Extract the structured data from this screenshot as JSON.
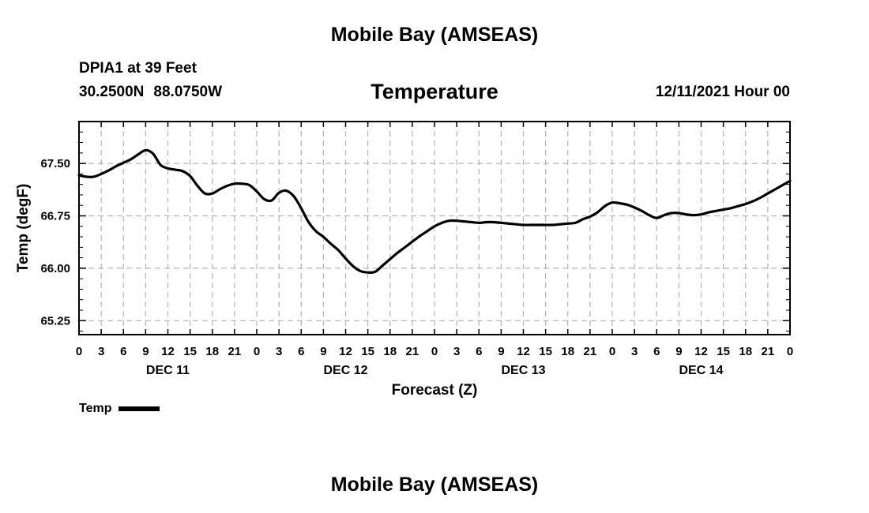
{
  "header": {
    "title": "Mobile Bay (AMSEAS)",
    "station": "DPIA1 at 39 Feet",
    "lat": "30.2500N",
    "lon": "88.0750W",
    "chart_title": "Temperature",
    "init_time": "12/11/2021 Hour 00"
  },
  "footer": {
    "title": "Mobile Bay (AMSEAS)"
  },
  "legend": {
    "label": "Temp",
    "color": "#000000"
  },
  "chart_data": {
    "type": "line",
    "title": "Temperature",
    "xlabel": "Forecast (Z)",
    "ylabel": "Temp (degF)",
    "x_unit": "forecast hour",
    "xlim": [
      0,
      96
    ],
    "ylim": [
      65.05,
      68.1
    ],
    "yticks": [
      65.25,
      66.0,
      66.75,
      67.5
    ],
    "ytick_labels": [
      "65.25",
      "66.00",
      "66.75",
      "67.50"
    ],
    "xtick_labels": [
      "0",
      "3",
      "6",
      "9",
      "12",
      "15",
      "18",
      "21",
      "0",
      "3",
      "6",
      "9",
      "12",
      "15",
      "18",
      "21",
      "0",
      "3",
      "6",
      "9",
      "12",
      "15",
      "18",
      "21",
      "0",
      "3",
      "6",
      "9",
      "12",
      "15",
      "18",
      "21",
      "0"
    ],
    "date_labels": [
      {
        "label": "DEC 11",
        "hour": 12
      },
      {
        "label": "DEC 12",
        "hour": 36
      },
      {
        "label": "DEC 13",
        "hour": 60
      },
      {
        "label": "DEC 14",
        "hour": 84
      }
    ],
    "grid": true,
    "legend_position": "bottom-left",
    "series": [
      {
        "name": "Temp",
        "color": "#000000",
        "x": [
          0,
          1,
          2,
          3,
          4,
          5,
          6,
          7,
          8,
          9,
          10,
          11,
          12,
          13,
          14,
          15,
          16,
          17,
          18,
          19,
          20,
          21,
          22,
          23,
          24,
          25,
          26,
          27,
          28,
          29,
          30,
          31,
          32,
          33,
          34,
          35,
          36,
          37,
          38,
          39,
          40,
          41,
          42,
          43,
          44,
          45,
          46,
          47,
          48,
          49,
          50,
          51,
          52,
          53,
          54,
          55,
          56,
          57,
          58,
          59,
          60,
          61,
          62,
          63,
          64,
          65,
          66,
          67,
          68,
          69,
          70,
          71,
          72,
          73,
          74,
          75,
          76,
          77,
          78,
          79,
          80,
          81,
          82,
          83,
          84,
          85,
          86,
          87,
          88,
          89,
          90,
          91,
          92,
          93,
          94,
          95,
          96
        ],
        "y": [
          67.33,
          67.31,
          67.31,
          67.35,
          67.4,
          67.46,
          67.51,
          67.56,
          67.63,
          67.69,
          67.64,
          67.48,
          67.43,
          67.41,
          67.39,
          67.32,
          67.18,
          67.07,
          67.07,
          67.13,
          67.18,
          67.21,
          67.21,
          67.19,
          67.1,
          66.99,
          66.97,
          67.08,
          67.11,
          67.03,
          66.86,
          66.66,
          66.53,
          66.45,
          66.35,
          66.26,
          66.14,
          66.03,
          65.96,
          65.94,
          65.95,
          66.04,
          66.13,
          66.22,
          66.3,
          66.38,
          66.46,
          66.53,
          66.6,
          66.65,
          66.68,
          66.68,
          66.67,
          66.66,
          66.65,
          66.66,
          66.66,
          66.65,
          66.64,
          66.63,
          66.62,
          66.62,
          66.62,
          66.62,
          66.62,
          66.63,
          66.64,
          66.65,
          66.7,
          66.74,
          66.8,
          66.89,
          66.94,
          66.93,
          66.91,
          66.87,
          66.82,
          66.76,
          66.72,
          66.76,
          66.79,
          66.79,
          66.77,
          66.76,
          66.77,
          66.8,
          66.82,
          66.84,
          66.86,
          66.89,
          66.92,
          66.96,
          67.01,
          67.07,
          67.13,
          67.19,
          67.25
        ]
      }
    ]
  }
}
